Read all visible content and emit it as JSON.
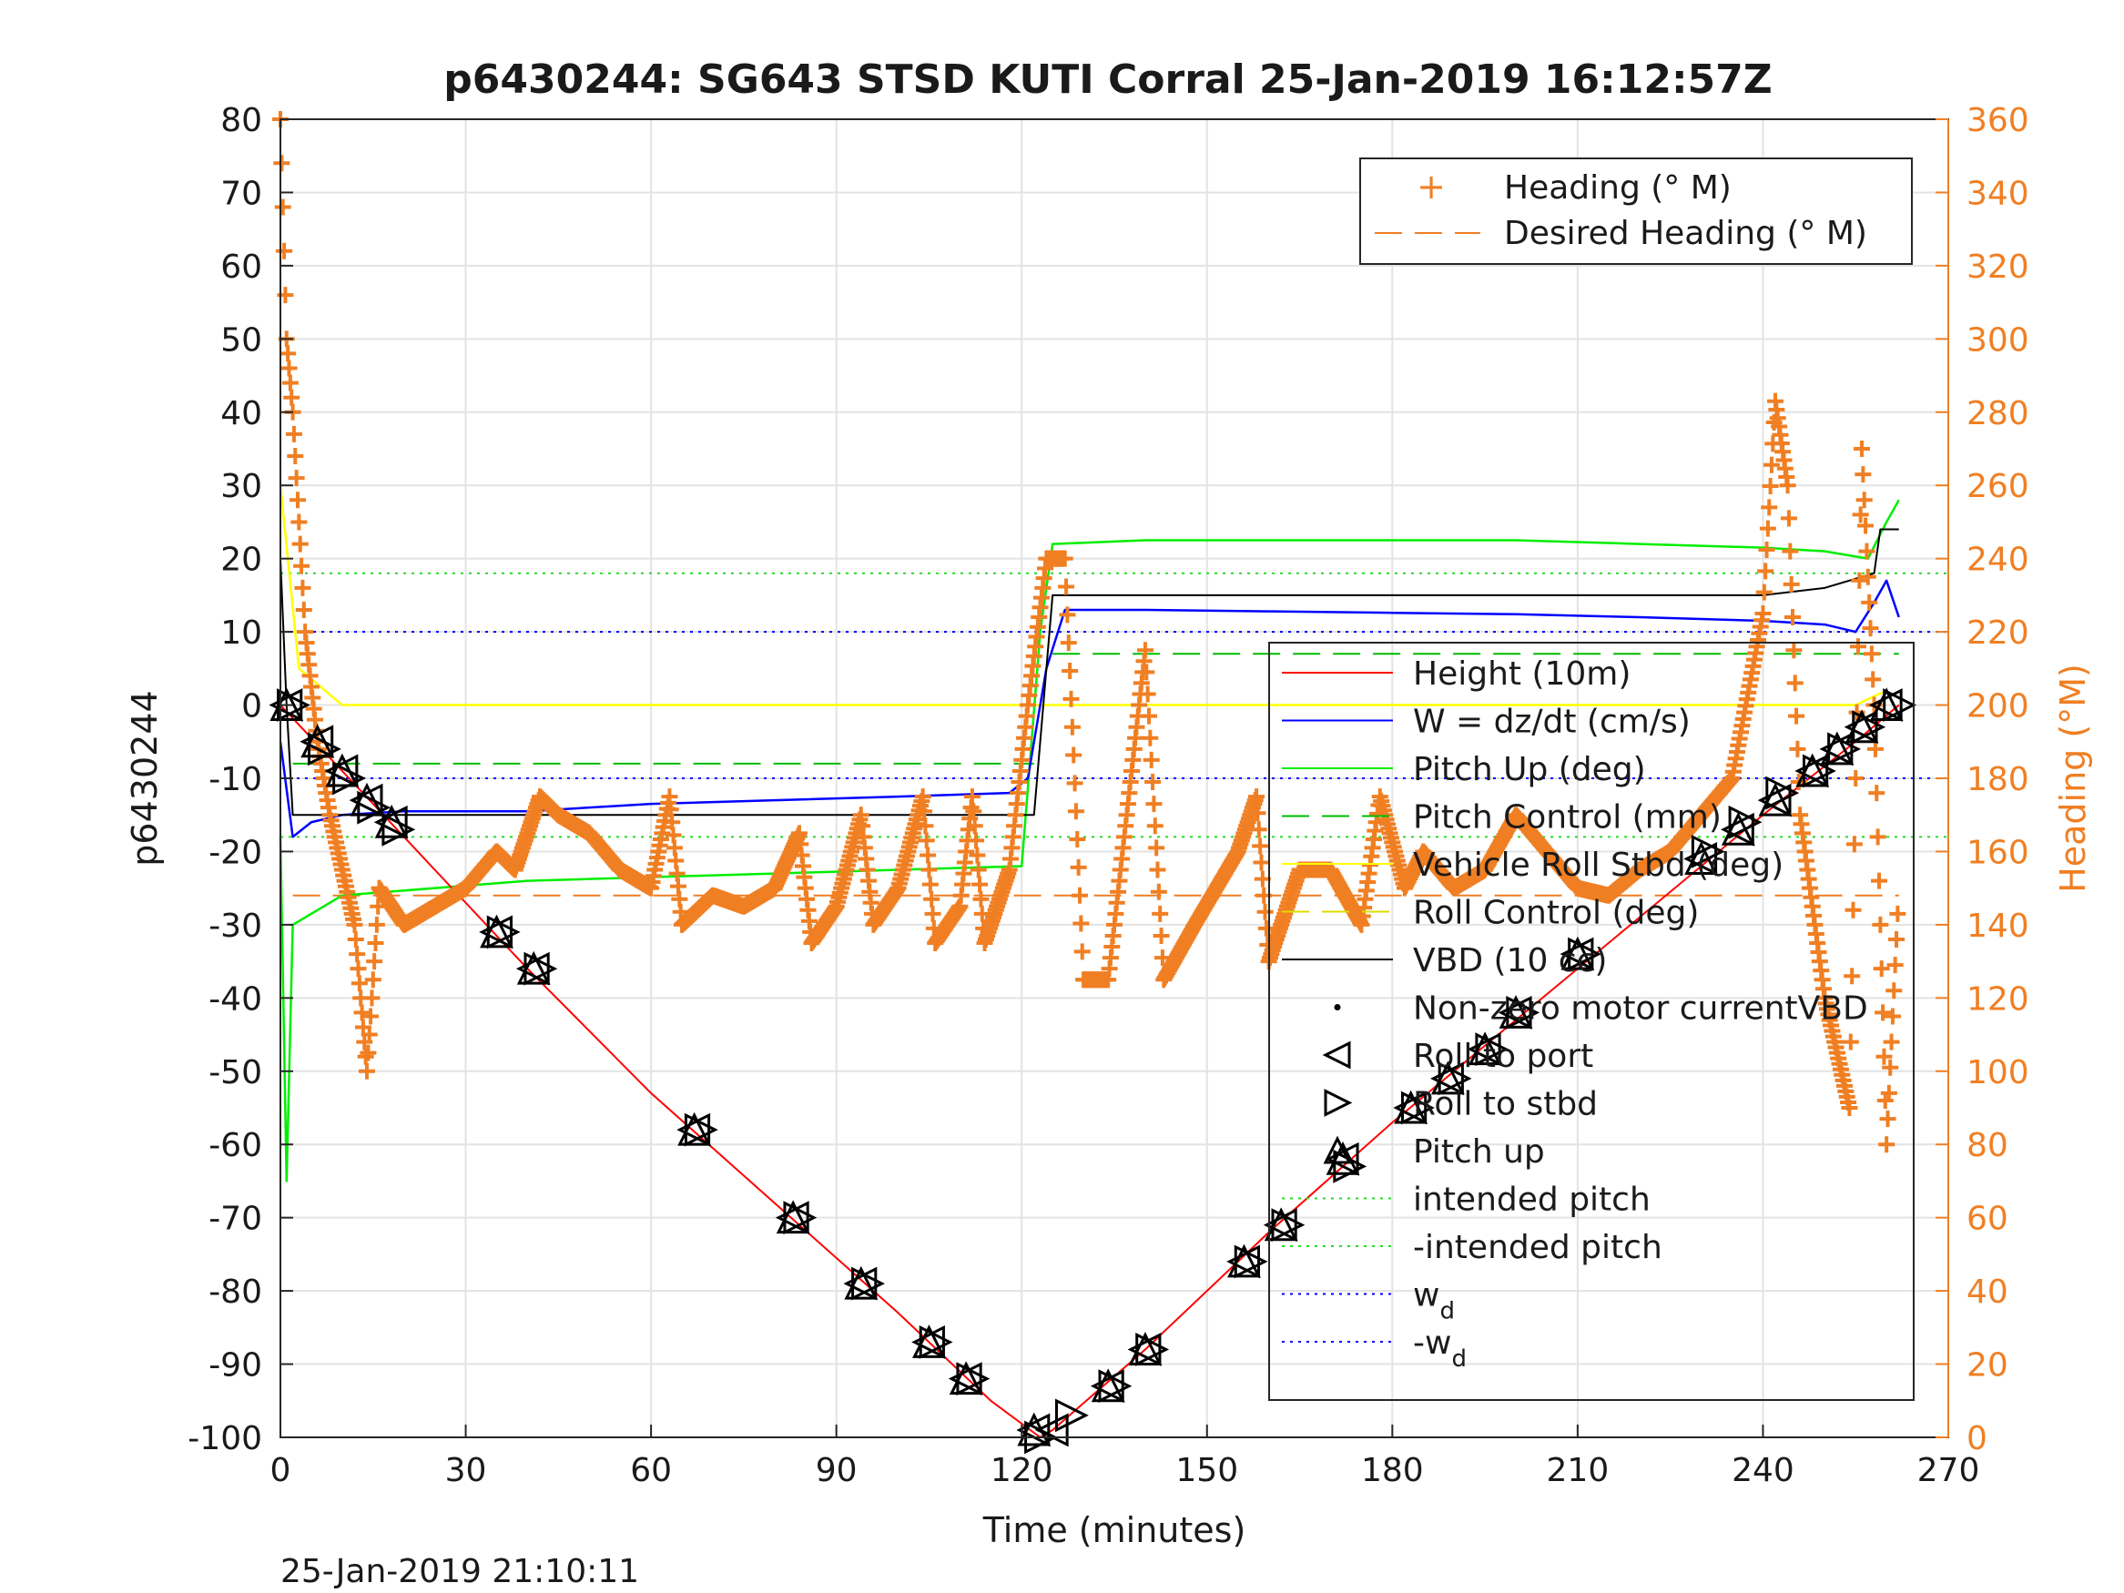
{
  "chart_data": {
    "type": "line",
    "title": "p6430244: SG643 STSD KUTI Corral 25-Jan-2019 16:12:57Z",
    "xlabel": "Time (minutes)",
    "ylabel_left": "p6430244",
    "ylabel_right": "Heading (°M)",
    "timestamp": "25-Jan-2019 21:10:11",
    "xlim": [
      0,
      270
    ],
    "ylim_left": [
      -100,
      80
    ],
    "ylim_right": [
      0,
      360
    ],
    "x_ticks": [
      0,
      30,
      60,
      90,
      120,
      150,
      180,
      210,
      240,
      270
    ],
    "y_ticks_left": [
      80,
      70,
      60,
      50,
      40,
      30,
      20,
      10,
      0,
      -10,
      -20,
      -30,
      -40,
      -50,
      -60,
      -70,
      -80,
      -90,
      -100
    ],
    "y_ticks_right": [
      360,
      340,
      320,
      300,
      280,
      260,
      240,
      220,
      200,
      180,
      160,
      140,
      120,
      100,
      80,
      60,
      40,
      20,
      0
    ],
    "grid": true,
    "legend_heading": [
      "Heading (° M)",
      "Desired Heading (° M)"
    ],
    "legend_main": [
      {
        "label": "Height (10m)"
      },
      {
        "label": "W = dz/dt (cm/s)"
      },
      {
        "label": "Pitch Up (deg)"
      },
      {
        "label": "Pitch Control (mm)"
      },
      {
        "label": "Vehicle Roll Stbd (deg)"
      },
      {
        "label": "Roll Control (deg)"
      },
      {
        "label": "VBD (10 cc)"
      },
      {
        "label": "Non-zero motor currentVBD"
      },
      {
        "label": "Roll to port"
      },
      {
        "label": "Roll to stbd"
      },
      {
        "label": "Pitch up"
      },
      {
        "label": "intended pitch"
      },
      {
        "label": "-intended pitch"
      },
      {
        "label": "w",
        "sub": "d"
      },
      {
        "label": "-w",
        "sub": "d"
      }
    ],
    "colors": {
      "height": "#ff0000",
      "w": "#0000ff",
      "pitch": "#00ee00",
      "pitch_control": "#00bb00",
      "roll": "#ffff00",
      "roll_control": "#dddd00",
      "vbd": "#000000",
      "heading": "#f07f23",
      "desired_heading": "#f07f23",
      "intended_pitch": "#22dd22",
      "wd": "#0000ff"
    },
    "reference_lines": {
      "intended_pitch": 18,
      "neg_intended_pitch": -18,
      "wd": 10,
      "neg_wd": -10,
      "pitch_control_dive": -8,
      "pitch_control_climb": 7,
      "desired_heading_deg": 148
    },
    "series": {
      "height": [
        [
          0,
          0
        ],
        [
          20,
          -18
        ],
        [
          40,
          -36
        ],
        [
          60,
          -53
        ],
        [
          80,
          -68
        ],
        [
          100,
          -83
        ],
        [
          115,
          -95
        ],
        [
          123,
          -100
        ],
        [
          125,
          -99
        ],
        [
          140,
          -88
        ],
        [
          160,
          -72
        ],
        [
          180,
          -57
        ],
        [
          200,
          -43
        ],
        [
          220,
          -29
        ],
        [
          240,
          -15
        ],
        [
          255,
          -5
        ],
        [
          262,
          0
        ]
      ],
      "w": [
        [
          0,
          -5
        ],
        [
          2,
          -18
        ],
        [
          5,
          -16
        ],
        [
          10,
          -15
        ],
        [
          20,
          -14.5
        ],
        [
          40,
          -14.5
        ],
        [
          60,
          -13.5
        ],
        [
          80,
          -13
        ],
        [
          100,
          -12.5
        ],
        [
          118,
          -12
        ],
        [
          121,
          -10
        ],
        [
          124,
          5
        ],
        [
          127,
          13
        ],
        [
          140,
          13
        ],
        [
          160,
          12.8
        ],
        [
          180,
          12.6
        ],
        [
          200,
          12.4
        ],
        [
          220,
          12
        ],
        [
          240,
          11.5
        ],
        [
          250,
          11
        ],
        [
          255,
          10
        ],
        [
          258,
          14
        ],
        [
          260,
          17
        ],
        [
          262,
          12
        ]
      ],
      "pitch": [
        [
          0,
          -18
        ],
        [
          1,
          -65
        ],
        [
          2,
          -30
        ],
        [
          10,
          -26
        ],
        [
          40,
          -24
        ],
        [
          80,
          -23
        ],
        [
          100,
          -22.5
        ],
        [
          120,
          -22
        ],
        [
          123,
          10
        ],
        [
          125,
          22
        ],
        [
          140,
          22.5
        ],
        [
          180,
          22.5
        ],
        [
          200,
          22.5
        ],
        [
          220,
          22
        ],
        [
          240,
          21.5
        ],
        [
          250,
          21
        ],
        [
          257,
          20
        ],
        [
          260,
          25
        ],
        [
          262,
          28
        ]
      ],
      "roll": [
        [
          0,
          30
        ],
        [
          3,
          5
        ],
        [
          10,
          0
        ],
        [
          20,
          0
        ],
        [
          40,
          0
        ],
        [
          60,
          0
        ],
        [
          80,
          0
        ],
        [
          100,
          0
        ],
        [
          120,
          0
        ],
        [
          140,
          0
        ],
        [
          160,
          0
        ],
        [
          180,
          0
        ],
        [
          200,
          0
        ],
        [
          220,
          0
        ],
        [
          240,
          0
        ],
        [
          255,
          0
        ],
        [
          260,
          2
        ]
      ],
      "vbd": [
        [
          0,
          20
        ],
        [
          1,
          0
        ],
        [
          2,
          -15
        ],
        [
          20,
          -15
        ],
        [
          60,
          -15
        ],
        [
          100,
          -15
        ],
        [
          122,
          -15
        ],
        [
          125,
          15
        ],
        [
          180,
          15
        ],
        [
          200,
          15
        ],
        [
          240,
          15
        ],
        [
          250,
          16
        ],
        [
          258,
          18
        ],
        [
          259,
          24
        ],
        [
          262,
          24
        ]
      ],
      "heading": [
        [
          0,
          360
        ],
        [
          1,
          300
        ],
        [
          2,
          280
        ],
        [
          3,
          250
        ],
        [
          4,
          220
        ],
        [
          6,
          190
        ],
        [
          8,
          170
        ],
        [
          10,
          155
        ],
        [
          12,
          140
        ],
        [
          14,
          100
        ],
        [
          16,
          150
        ],
        [
          18,
          145
        ],
        [
          20,
          140
        ],
        [
          25,
          145
        ],
        [
          30,
          150
        ],
        [
          35,
          160
        ],
        [
          38,
          155
        ],
        [
          42,
          175
        ],
        [
          45,
          170
        ],
        [
          50,
          165
        ],
        [
          55,
          155
        ],
        [
          60,
          150
        ],
        [
          63,
          175
        ],
        [
          65,
          140
        ],
        [
          70,
          148
        ],
        [
          75,
          145
        ],
        [
          80,
          150
        ],
        [
          84,
          165
        ],
        [
          86,
          135
        ],
        [
          90,
          145
        ],
        [
          94,
          170
        ],
        [
          96,
          140
        ],
        [
          100,
          150
        ],
        [
          104,
          175
        ],
        [
          106,
          135
        ],
        [
          110,
          145
        ],
        [
          112,
          175
        ],
        [
          114,
          135
        ],
        [
          118,
          155
        ],
        [
          121,
          200
        ],
        [
          124,
          240
        ],
        [
          127,
          240
        ],
        [
          130,
          125
        ],
        [
          134,
          125
        ],
        [
          140,
          215
        ],
        [
          143,
          125
        ],
        [
          148,
          140
        ],
        [
          155,
          160
        ],
        [
          158,
          175
        ],
        [
          160,
          130
        ],
        [
          165,
          155
        ],
        [
          170,
          155
        ],
        [
          175,
          140
        ],
        [
          178,
          175
        ],
        [
          182,
          150
        ],
        [
          185,
          160
        ],
        [
          190,
          150
        ],
        [
          195,
          155
        ],
        [
          200,
          170
        ],
        [
          205,
          160
        ],
        [
          210,
          150
        ],
        [
          215,
          148
        ],
        [
          220,
          155
        ],
        [
          225,
          160
        ],
        [
          230,
          170
        ],
        [
          235,
          180
        ],
        [
          240,
          225
        ],
        [
          242,
          283
        ],
        [
          244,
          260
        ],
        [
          246,
          170
        ],
        [
          250,
          120
        ],
        [
          254,
          90
        ],
        [
          256,
          270
        ],
        [
          258,
          200
        ],
        [
          260,
          80
        ],
        [
          262,
          150
        ]
      ]
    },
    "markers": {
      "roll_to_port": [
        [
          1,
          0
        ],
        [
          6,
          -5
        ],
        [
          10,
          -9
        ],
        [
          14,
          -13
        ],
        [
          18,
          -16
        ],
        [
          35,
          -31
        ],
        [
          41,
          -36
        ],
        [
          67,
          -58
        ],
        [
          83,
          -70
        ],
        [
          94,
          -79
        ],
        [
          105,
          -87
        ],
        [
          111,
          -92
        ],
        [
          122,
          -99
        ],
        [
          125,
          -99
        ],
        [
          134,
          -93
        ],
        [
          140,
          -88
        ],
        [
          156,
          -76
        ],
        [
          162,
          -71
        ],
        [
          172,
          -62
        ],
        [
          183,
          -55
        ],
        [
          189,
          -51
        ],
        [
          195,
          -47
        ],
        [
          200,
          -42
        ],
        [
          210,
          -34
        ],
        [
          230,
          -21
        ],
        [
          236,
          -17
        ],
        [
          242,
          -13
        ],
        [
          248,
          -9
        ],
        [
          252,
          -6
        ],
        [
          256,
          -3
        ],
        [
          260,
          0
        ]
      ],
      "roll_to_stbd": [
        [
          2,
          0
        ],
        [
          7,
          -6
        ],
        [
          11,
          -10
        ],
        [
          15,
          -14
        ],
        [
          19,
          -17
        ],
        [
          36,
          -31
        ],
        [
          42,
          -36
        ],
        [
          68,
          -58
        ],
        [
          84,
          -70
        ],
        [
          95,
          -79
        ],
        [
          106,
          -87
        ],
        [
          112,
          -92
        ],
        [
          123,
          -100
        ],
        [
          128,
          -97
        ],
        [
          135,
          -93
        ],
        [
          141,
          -88
        ],
        [
          157,
          -76
        ],
        [
          163,
          -71
        ],
        [
          173,
          -63
        ],
        [
          184,
          -55
        ],
        [
          190,
          -51
        ],
        [
          196,
          -47
        ],
        [
          201,
          -42
        ],
        [
          211,
          -34
        ],
        [
          231,
          -20
        ],
        [
          237,
          -16
        ],
        [
          243,
          -12
        ],
        [
          249,
          -9
        ],
        [
          253,
          -6
        ],
        [
          257,
          -3
        ],
        [
          262,
          0
        ]
      ],
      "pitch_up": [
        [
          1,
          0
        ],
        [
          6,
          -5
        ],
        [
          10,
          -9
        ],
        [
          14,
          -13
        ],
        [
          18,
          -16
        ],
        [
          35,
          -31
        ],
        [
          41,
          -36
        ],
        [
          67,
          -58
        ],
        [
          83,
          -70
        ],
        [
          94,
          -79
        ],
        [
          105,
          -87
        ],
        [
          111,
          -92
        ],
        [
          122,
          -99
        ],
        [
          134,
          -93
        ],
        [
          140,
          -88
        ],
        [
          156,
          -76
        ],
        [
          162,
          -71
        ],
        [
          172,
          -62
        ],
        [
          183,
          -55
        ],
        [
          189,
          -51
        ],
        [
          195,
          -47
        ],
        [
          200,
          -42
        ],
        [
          210,
          -34
        ],
        [
          230,
          -21
        ],
        [
          236,
          -17
        ],
        [
          242,
          -13
        ],
        [
          248,
          -9
        ],
        [
          252,
          -6
        ],
        [
          256,
          -3
        ],
        [
          260,
          0
        ]
      ]
    }
  }
}
